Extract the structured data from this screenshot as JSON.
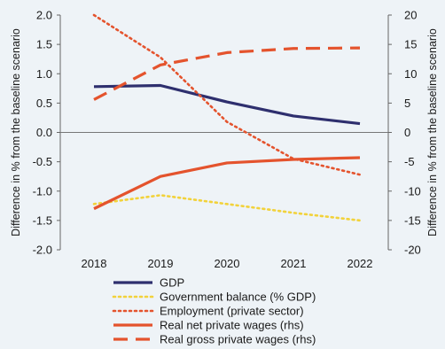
{
  "chart_data": {
    "type": "line",
    "title": "",
    "x": [
      "2018",
      "2019",
      "2020",
      "2021",
      "2022"
    ],
    "y_left": {
      "label": "Difference in % from the baseline scenario",
      "range": [
        -2.0,
        2.0
      ],
      "ticks": [
        "2.0",
        "1.5",
        "1.0",
        "0.5",
        "0.0",
        "-0.5",
        "-1.0",
        "-1.5",
        "-2.0"
      ]
    },
    "y_right": {
      "label": "Difference in % from the baseline scenario",
      "range": [
        -20,
        20
      ],
      "ticks": [
        "20",
        "15",
        "10",
        "5",
        "0",
        "-5",
        "-10",
        "-15",
        "-20"
      ]
    },
    "zero_line": true,
    "grid": false,
    "legend_position": "bottom",
    "series": [
      {
        "name": "GDP",
        "axis": "left",
        "style": "solid",
        "color": "#2e2f6e",
        "values": [
          0.78,
          0.8,
          0.52,
          0.28,
          0.15
        ]
      },
      {
        "name": "Government balance (% GDP)",
        "axis": "left",
        "style": "dotted",
        "color": "#f2d23a",
        "values": [
          -1.22,
          -1.07,
          -1.22,
          -1.37,
          -1.5
        ]
      },
      {
        "name": "Employment (private sector)",
        "axis": "left",
        "style": "dotted",
        "color": "#e4532d",
        "values": [
          2.0,
          1.28,
          0.18,
          -0.45,
          -0.72
        ]
      },
      {
        "name": "Real net private wages (rhs)",
        "axis": "right",
        "style": "solid",
        "color": "#e4532d",
        "values": [
          -13.0,
          -7.5,
          -5.2,
          -4.6,
          -4.3
        ]
      },
      {
        "name": "Real gross private wages (rhs)",
        "axis": "right",
        "style": "dashed",
        "color": "#e4532d",
        "values": [
          5.6,
          11.5,
          13.6,
          14.3,
          14.4
        ]
      }
    ]
  }
}
